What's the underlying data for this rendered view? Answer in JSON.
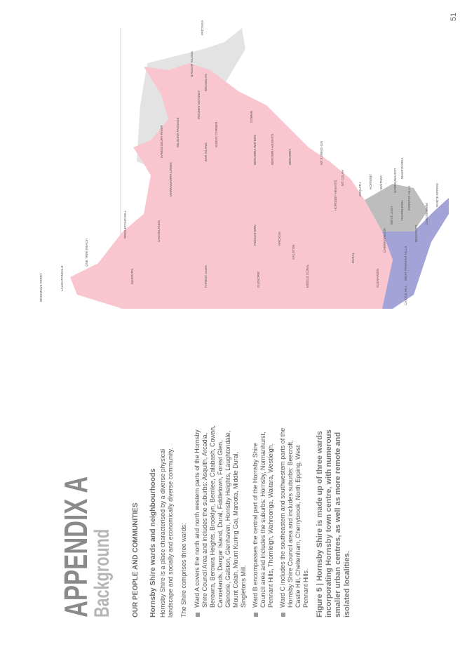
{
  "header": {
    "title": "APPENDIX A",
    "subtitle": "Background"
  },
  "section_heading": "OUR PEOPLE AND COMMUNITIES",
  "subheading": "Hornsby Shire wards and neighbourhoods",
  "paragraphs": [
    "Hornsby Shire is a place characterised by a diverse physical landscape and socially and economically diverse community.",
    "The Shire comprises three wards:"
  ],
  "bullets": [
    "Ward A covers the north and north western parts of the Hornsby Shire Council Area and includes the suburbs: Asquith, Arcadia, Berowra, Berowra Heights, Brooklyn, Berrilee, Calabash, Cowan, Canoelands, Dangar Island, Dural, Fiddletown, Forest Glen, Glenorie, Galston, Glenhaven, Hornsby Heights, Laughtondale, Mount Colah, Mount Kuring Gai, Maroota, Middle Dural, Singletons Mill.",
    "Ward B encompasses the central part of the Hornsby Shire Council area and includes the suburbs: Hornsby, Normanhurst, Pennant Hills, Thornleigh, Wahroonga, Waitara, Westleigh.",
    "Ward C includes the southeastern and southwestern parts of the Hornsby Shire Council area and includes suburbs: Beecroft, Castle Hill, Cheltenham, Cherrybrook, North Epping, West Pennant Hills."
  ],
  "caption": "Figure 5 | Hornsby Shire is made up of three wards incorporating Hornsby town centre, with numerous smaller urban centres, as well as more remote and isolated localities.",
  "page_number": "51",
  "map": {
    "labels": [
      "WISEMANS FERRY",
      "LAUGHTONDALE",
      "ONE TREE REACH",
      "MAROOTA",
      "SINGLETONS MILL",
      "CANOELANDS",
      "MARRAMARRA CREEK",
      "FOREST GLEN",
      "GLENORIE",
      "FIDDLETOWN",
      "GALSTON",
      "ARCADIA",
      "MIDDLE DURAL",
      "DURAL",
      "GLENHAVEN",
      "CASTLE HILL",
      "WEST PENNANT HILLS",
      "CHERRYBROOK",
      "WESTLEIGH",
      "BEECROFT",
      "CHELTENHAM",
      "NORTH EPPING",
      "PENNANT HILLS",
      "THORNLEIGH",
      "NORMANHURST",
      "WAHROONGA",
      "WAITARA",
      "HORNSBY",
      "ASQUITH",
      "MT COLAH",
      "HORNSBY HEIGHTS",
      "MT KURING-GAI",
      "BEROWRA",
      "BEROWRA HEIGHTS",
      "BEROWRA WATERS",
      "COWAN",
      "BROOKLYN",
      "DANGAR ISLAND",
      "MOONEY MOONEY",
      "MILSONS PASSAGE",
      "BAR ISLAND",
      "SUNNY CORNER",
      "PATONGA",
      "HAWKESBURY RIVER"
    ]
  }
}
